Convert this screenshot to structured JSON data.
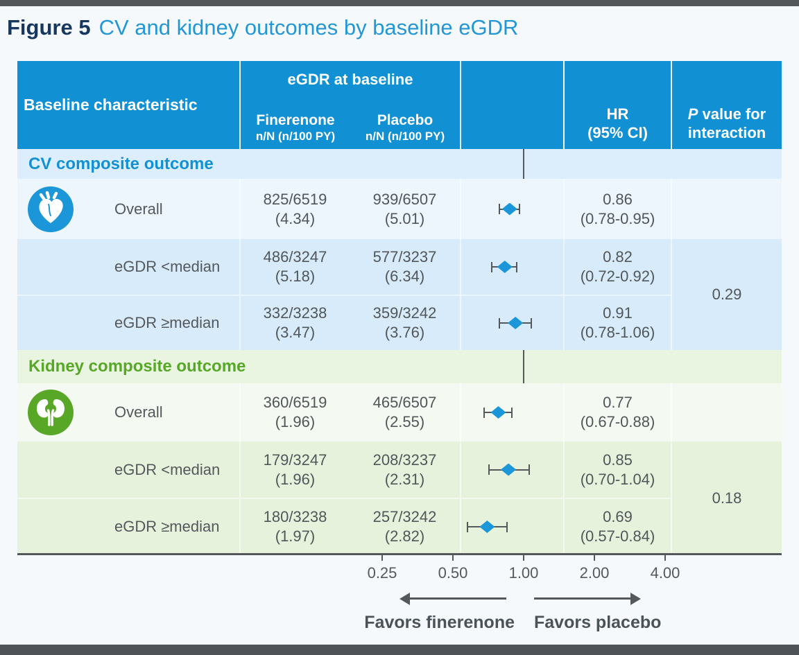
{
  "title": {
    "prefix": "Figure 5",
    "main": "CV and kidney outcomes by baseline eGDR"
  },
  "header": {
    "characteristic": "Baseline characteristic",
    "group_label": "eGDR at baseline",
    "arms": [
      {
        "name": "Finerenone",
        "sub": "n/N (n/100 PY)"
      },
      {
        "name": "Placebo",
        "sub": "n/N (n/100 PY)"
      }
    ],
    "hr_line1": "HR",
    "hr_line2": "(95% CI)",
    "p_italic": "P",
    "p_rest": " value for",
    "p_line2": "interaction"
  },
  "chart_data": {
    "type": "scatter",
    "variant": "forest-plot",
    "x_scale": "log2",
    "x_ticks": [
      0.25,
      0.5,
      1,
      2,
      4
    ],
    "x_tick_labels": [
      "0.25",
      "0.50",
      "1.00",
      "2.00",
      "4.00"
    ],
    "reference_value": 1.0,
    "groups": [
      {
        "label": "CV composite outcome",
        "icon": "heart-icon",
        "p_interaction": "0.29",
        "rows": [
          {
            "label": "Overall",
            "fin_n": "825/6519",
            "fin_rate": "(4.34)",
            "plc_n": "939/6507",
            "plc_rate": "(5.01)",
            "hr": 0.86,
            "ci_low": 0.78,
            "ci_high": 0.95,
            "hr_text": "0.86",
            "ci_text": "(0.78-0.95)"
          },
          {
            "label": "eGDR <median",
            "fin_n": "486/3247",
            "fin_rate": "(5.18)",
            "plc_n": "577/3237",
            "plc_rate": "(6.34)",
            "hr": 0.82,
            "ci_low": 0.72,
            "ci_high": 0.92,
            "hr_text": "0.82",
            "ci_text": "(0.72-0.92)"
          },
          {
            "label": "eGDR ≥median",
            "fin_n": "332/3238",
            "fin_rate": "(3.47)",
            "plc_n": "359/3242",
            "plc_rate": "(3.76)",
            "hr": 0.91,
            "ci_low": 0.78,
            "ci_high": 1.06,
            "hr_text": "0.91",
            "ci_text": "(0.78-1.06)"
          }
        ]
      },
      {
        "label": "Kidney composite outcome",
        "icon": "kidney-icon",
        "p_interaction": "0.18",
        "rows": [
          {
            "label": "Overall",
            "fin_n": "360/6519",
            "fin_rate": "(1.96)",
            "plc_n": "465/6507",
            "plc_rate": "(2.55)",
            "hr": 0.77,
            "ci_low": 0.67,
            "ci_high": 0.88,
            "hr_text": "0.77",
            "ci_text": "(0.67-0.88)"
          },
          {
            "label": "eGDR <median",
            "fin_n": "179/3247",
            "fin_rate": "(1.96)",
            "plc_n": "208/3237",
            "plc_rate": "(2.31)",
            "hr": 0.85,
            "ci_low": 0.7,
            "ci_high": 1.04,
            "hr_text": "0.85",
            "ci_text": "(0.70-1.04)"
          },
          {
            "label": "eGDR ≥median",
            "fin_n": "180/3238",
            "fin_rate": "(1.97)",
            "plc_n": "257/3242",
            "plc_rate": "(2.82)",
            "hr": 0.69,
            "ci_low": 0.57,
            "ci_high": 0.84,
            "hr_text": "0.69",
            "ci_text": "(0.57-0.84)"
          }
        ]
      }
    ],
    "favors_left": "Favors finerenone",
    "favors_right": "Favors placebo"
  },
  "colors": {
    "header_bg": "#1191d4",
    "title_number": "#17375e",
    "title_text": "#2397d5",
    "cv_band_bg": "#dceefb",
    "cv_row_pale": "#eef6fd",
    "cv_row_mid": "#d7ebfa",
    "cv_text": "#1191d4",
    "kidney_band_bg": "#e9f4e1",
    "kidney_row_pale": "#f4faf1",
    "kidney_row_mid": "#e7f2dd",
    "kidney_text": "#56a826",
    "heart_circle": "#1b96d8",
    "kidney_circle": "#58a727",
    "diamond": "#1b96d8",
    "line_gray": "#54585b",
    "value_text": "#515659"
  }
}
